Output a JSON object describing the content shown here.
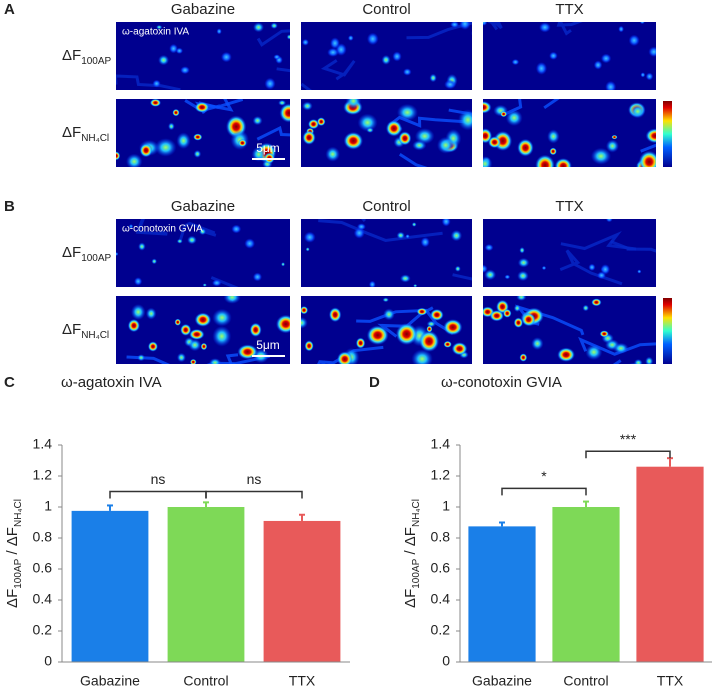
{
  "figure": {
    "panels": [
      {
        "letter": "A",
        "toxin": "ω-agatoxin IVA",
        "columns": [
          "Gabazine",
          "Control",
          "TTX"
        ],
        "rows": [
          [
            "ΔF",
            "100AP"
          ],
          [
            "ΔF",
            "NH₄Cl"
          ]
        ],
        "scale_bar": "5μm"
      },
      {
        "letter": "B",
        "toxin": "ω-conotoxin GVIA",
        "columns": [
          "Gabazine",
          "Control",
          "TTX"
        ],
        "rows": [
          [
            "ΔF",
            "100AP"
          ],
          [
            "ΔF",
            "NH₄Cl"
          ]
        ],
        "scale_bar": "5μm"
      }
    ]
  },
  "chart_data": [
    {
      "type": "bar",
      "panel_label": "C",
      "title": "ω-agatoxin IVA",
      "categories": [
        "Gabazine",
        "Control",
        "TTX"
      ],
      "values": [
        0.975,
        1.0,
        0.91
      ],
      "errors": [
        0.035,
        0.03,
        0.04
      ],
      "colors": [
        "#1a7fe8",
        "#7ed957",
        "#e85a5a"
      ],
      "ylabel_parts": [
        "ΔF",
        "100AP",
        " / ΔF",
        "NH₄Cl"
      ],
      "ylim": [
        0,
        1.4
      ],
      "yticks": [
        0,
        0.2,
        0.4,
        0.6,
        0.8,
        1,
        1.2,
        1.4
      ],
      "annotations": [
        {
          "between": [
            "Gabazine",
            "Control"
          ],
          "y": 1.1,
          "label": "ns"
        },
        {
          "between": [
            "Control",
            "TTX"
          ],
          "y": 1.1,
          "label": "ns"
        }
      ]
    },
    {
      "type": "bar",
      "panel_label": "D",
      "title": "ω-conotoxin GVIA",
      "categories": [
        "Gabazine",
        "Control",
        "TTX"
      ],
      "values": [
        0.875,
        1.0,
        1.26
      ],
      "errors": [
        0.025,
        0.035,
        0.055
      ],
      "colors": [
        "#1a7fe8",
        "#7ed957",
        "#e85a5a"
      ],
      "ylabel_parts": [
        "ΔF",
        "100AP",
        " / ΔF",
        "NH₄Cl"
      ],
      "ylim": [
        0,
        1.4
      ],
      "yticks": [
        0,
        0.2,
        0.4,
        0.6,
        0.8,
        1,
        1.2,
        1.4
      ],
      "annotations": [
        {
          "between": [
            "Gabazine",
            "Control"
          ],
          "y": 1.12,
          "label": "*"
        },
        {
          "between": [
            "Control",
            "TTX"
          ],
          "y": 1.36,
          "label": "***"
        }
      ]
    }
  ]
}
